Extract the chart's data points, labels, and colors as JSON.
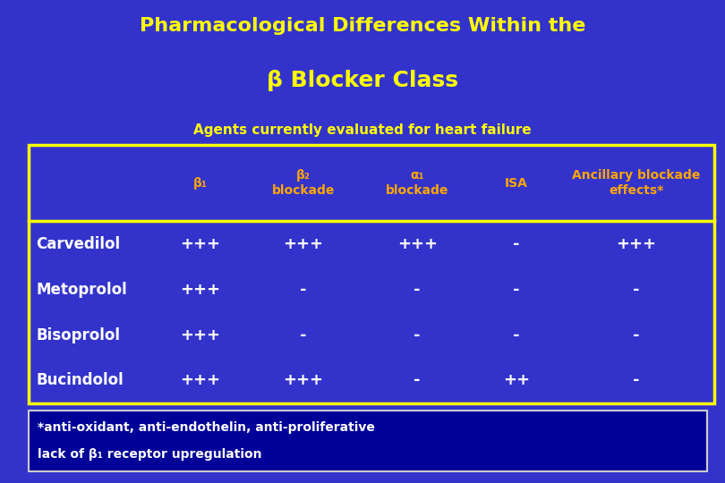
{
  "bg_color": "#3333CC",
  "title_line1": "Pharmacological Differences Within the",
  "title_line2": "β Blocker Class",
  "subtitle": "Agents currently evaluated for heart failure",
  "title_color": "#FFFF00",
  "subtitle_color": "#FFFF00",
  "table_bg": "#3333CC",
  "table_border_color": "#FFFF00",
  "header_color": "#FFA500",
  "col_headers": [
    "β₁",
    "β₂\nblockade",
    "α₁\nblockade",
    "ISA",
    "Ancillary blockade\neffects*"
  ],
  "row_labels": [
    "Carvedilol",
    "Metoprolol",
    "Bisoprolol",
    "Bucindolol"
  ],
  "row_label_color": "#FFFFFF",
  "cell_data": [
    [
      "+++",
      "+++",
      "+++",
      "-",
      "+++"
    ],
    [
      "+++",
      "-",
      "-",
      "-",
      "-"
    ],
    [
      "+++",
      "-",
      "-",
      "-",
      "-"
    ],
    [
      "+++",
      "+++",
      "-",
      "++",
      "-"
    ]
  ],
  "cell_color": "#FFFFFF",
  "footnote_bg": "#000099",
  "footnote_border": "#CCCCCC",
  "footnote_color": "#FFFFFF",
  "footnote_lines": [
    "*anti-oxidant, anti-endothelin, anti-proliferative",
    "lack of β₁ receptor upregulation"
  ],
  "title1_fontsize": 16,
  "title2_fontsize": 18,
  "subtitle_fontsize": 11,
  "header_fontsize": 10,
  "row_label_fontsize": 12,
  "cell_fontsize": 13,
  "footnote_fontsize": 10
}
